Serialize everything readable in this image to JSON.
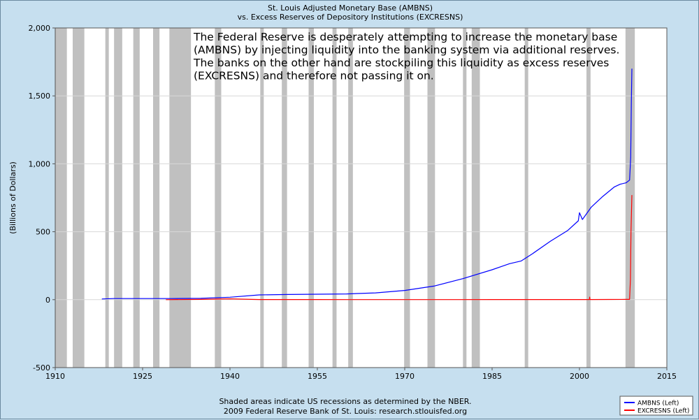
{
  "chart_data": {
    "type": "line",
    "title": "St. Louis Adjusted Monetary Base (AMBNS)",
    "subtitle": "vs.  Excess Reserves of Depository Institutions (EXCRESNS)",
    "xlabel": "",
    "ylabel": "(Billions of Dollars)",
    "xlim": [
      1910,
      2015
    ],
    "ylim": [
      -500,
      2000
    ],
    "x_ticks": [
      "1910",
      "1925",
      "1940",
      "1955",
      "1970",
      "1985",
      "2000",
      "2015"
    ],
    "x_tick_values": [
      1910,
      1925,
      1940,
      1955,
      1970,
      1985,
      2000,
      2015
    ],
    "y_ticks": [
      "-500",
      "0",
      "500",
      "1,000",
      "1,500",
      "2,000"
    ],
    "y_tick_values": [
      -500,
      0,
      500,
      1000,
      1500,
      2000
    ],
    "grid": true,
    "legend_position": "bottom-right",
    "annotation": "The Federal Reserve is desperately attempting to increase the monetary base (AMBNS) by injecting liquidity into the banking system via additional reserves. The banks on the other hand are stockpiling this liquidity as excess reserves (EXCRESNS) and therefore not passing it on.",
    "annotation_lines": [
      "The Federal Reserve is desperately attempting to increase the monetary base",
      "(AMBNS) by injecting liquidity into the banking system via additional reserves.",
      "The banks on the other hand are stockpiling this liquidity as excess reserves",
      "(EXCRESNS) and therefore not passing it on."
    ],
    "recessions": [
      [
        1910.0,
        1912.0
      ],
      [
        1913.0,
        1915.0
      ],
      [
        1918.6,
        1919.2
      ],
      [
        1920.1,
        1921.5
      ],
      [
        1923.4,
        1924.5
      ],
      [
        1926.8,
        1927.9
      ],
      [
        1929.6,
        1933.3
      ],
      [
        1937.4,
        1938.5
      ],
      [
        1945.2,
        1945.8
      ],
      [
        1948.9,
        1949.8
      ],
      [
        1953.5,
        1954.4
      ],
      [
        1957.6,
        1958.3
      ],
      [
        1960.3,
        1961.1
      ],
      [
        1969.9,
        1970.9
      ],
      [
        1973.9,
        1975.2
      ],
      [
        1980.0,
        1980.6
      ],
      [
        1981.5,
        1982.9
      ],
      [
        1990.6,
        1991.2
      ],
      [
        2001.2,
        2001.9
      ],
      [
        2007.9,
        2009.5
      ]
    ],
    "series": [
      {
        "name": "AMBNS (Left)",
        "color": "#0000ff",
        "x": [
          1918,
          1920,
          1925,
          1930,
          1935,
          1940,
          1945,
          1950,
          1955,
          1960,
          1965,
          1970,
          1975,
          1980,
          1985,
          1988,
          1990,
          1992,
          1995,
          1998,
          1999.8,
          2000.0,
          2000.5,
          2002,
          2004,
          2006,
          2007,
          2008,
          2008.6,
          2008.8,
          2008.9,
          2009.0
        ],
        "values": [
          5,
          8,
          8,
          8,
          10,
          18,
          35,
          38,
          40,
          42,
          50,
          68,
          100,
          155,
          220,
          265,
          285,
          340,
          430,
          510,
          580,
          640,
          590,
          680,
          760,
          830,
          850,
          860,
          880,
          1050,
          1450,
          1700
        ]
      },
      {
        "name": "EXCRESNS (Left)",
        "color": "#ff0000",
        "x": [
          1929,
          1935,
          1940,
          1945,
          1950,
          1955,
          1960,
          1965,
          1970,
          1975,
          1980,
          1985,
          1990,
          1995,
          2000,
          2001.7,
          2001.75,
          2001.8,
          2005,
          2008,
          2008.6,
          2008.75,
          2008.85,
          2009.0
        ],
        "values": [
          0,
          2,
          6,
          1,
          1,
          1,
          0.5,
          0.5,
          0.5,
          0.5,
          0.5,
          1,
          1,
          1,
          1,
          1,
          19,
          1,
          1.5,
          2,
          2,
          150,
          500,
          770
        ]
      }
    ]
  },
  "footer": {
    "line1": "Shaded areas indicate US recessions as determined by the NBER.",
    "line2": "2009 Federal Reserve Bank of St. Louis: research.stlouisfed.org"
  },
  "colors": {
    "background": "#c6dfef",
    "plot_area": "#ffffff",
    "recession": "#c0c0c0",
    "grid": "#cfd8de"
  }
}
